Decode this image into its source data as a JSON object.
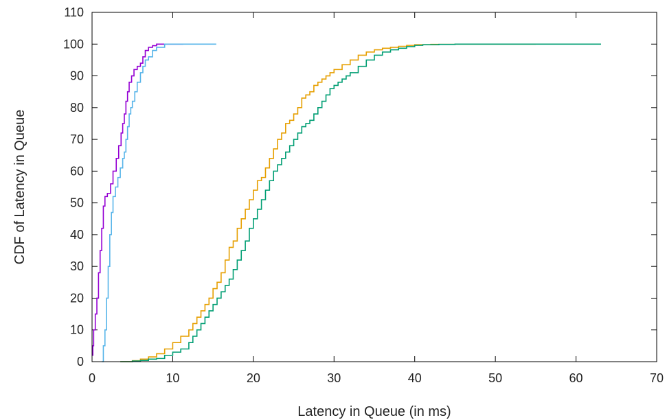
{
  "chart_data": {
    "type": "line",
    "title": "",
    "xlabel": "Latency in Queue (in ms)",
    "ylabel": "CDF of Latency in Queue",
    "xlim": [
      0,
      70
    ],
    "ylim": [
      0,
      110
    ],
    "x_ticks": [
      0,
      10,
      20,
      30,
      40,
      50,
      60,
      70
    ],
    "y_ticks": [
      0,
      10,
      20,
      30,
      40,
      50,
      60,
      70,
      80,
      90,
      100,
      110
    ],
    "grid": false,
    "legend": "none",
    "step": true,
    "series": [
      {
        "color": "#9400d3",
        "x": [
          0.0,
          0.1,
          0.2,
          0.4,
          0.6,
          0.8,
          1.0,
          1.2,
          1.4,
          1.6,
          1.9,
          2.3,
          2.6,
          3.0,
          3.3,
          3.6,
          3.8,
          4.0,
          4.2,
          4.4,
          4.6,
          4.9,
          5.2,
          5.6,
          6.0,
          6.3,
          6.6,
          7.0,
          7.5,
          8.0,
          9.0,
          10.0,
          11.3
        ],
        "y": [
          2,
          5,
          10,
          15,
          20,
          28,
          35,
          42,
          49,
          52,
          53,
          56,
          60,
          64,
          68,
          72,
          75,
          78,
          82,
          85,
          88,
          90,
          92,
          93,
          94,
          96,
          98,
          99,
          99.5,
          100,
          100,
          100,
          100
        ]
      },
      {
        "color": "#56b4e9",
        "x": [
          1.2,
          1.4,
          1.6,
          1.8,
          2.0,
          2.2,
          2.4,
          2.6,
          2.9,
          3.2,
          3.5,
          3.8,
          4.0,
          4.2,
          4.4,
          4.6,
          4.8,
          5.0,
          5.3,
          5.6,
          6.0,
          6.3,
          6.6,
          7.0,
          7.5,
          8.0,
          9.0,
          10.0,
          12.0,
          15.4
        ],
        "y": [
          0,
          5,
          10,
          20,
          30,
          40,
          47,
          52,
          55,
          58,
          61,
          64,
          66,
          70,
          74,
          78,
          80,
          82,
          85,
          88,
          91,
          93,
          95,
          96,
          98,
          99,
          100,
          100,
          100,
          100
        ]
      },
      {
        "color": "#e69f00",
        "x": [
          3.5,
          5,
          6,
          7,
          8,
          9,
          10,
          11,
          12,
          12.5,
          13,
          13.5,
          14,
          14.5,
          15,
          15.5,
          16,
          16.5,
          17,
          17.5,
          18,
          18.5,
          19,
          19.5,
          20,
          20.5,
          21,
          21.5,
          22,
          22.5,
          23,
          23.5,
          24,
          24.5,
          25,
          25.5,
          26,
          26.5,
          27,
          27.5,
          28,
          28.5,
          29,
          29.5,
          30,
          31,
          32,
          33,
          34,
          35,
          36,
          37,
          38,
          39,
          40,
          42,
          45,
          50,
          55
        ],
        "y": [
          0,
          0.3,
          0.8,
          1.5,
          2.5,
          4,
          6,
          8,
          10,
          12,
          14,
          16,
          18,
          20,
          23,
          25,
          28,
          32,
          36,
          38,
          42,
          45,
          48,
          51,
          54,
          57,
          58,
          61,
          64,
          67,
          70,
          72,
          75,
          76,
          78,
          80,
          83,
          84,
          85,
          87,
          88,
          89,
          90,
          91,
          92,
          93.5,
          95,
          96.5,
          97.5,
          98.2,
          98.7,
          99,
          99.3,
          99.6,
          99.8,
          99.9,
          100,
          100,
          100
        ]
      },
      {
        "color": "#009e73",
        "x": [
          3.5,
          5,
          6,
          7,
          8,
          9,
          10,
          11,
          12,
          12.5,
          13,
          13.5,
          14,
          14.5,
          15,
          15.5,
          16,
          16.5,
          17,
          17.5,
          18,
          18.5,
          19,
          19.5,
          20,
          20.5,
          21,
          21.5,
          22,
          22.5,
          23,
          23.5,
          24,
          24.5,
          25,
          25.5,
          26,
          26.5,
          27,
          27.5,
          28,
          28.5,
          29,
          29.5,
          30,
          30.5,
          31,
          31.5,
          32,
          33,
          34,
          35,
          36,
          37,
          38,
          39,
          40,
          41,
          43,
          45,
          50,
          55,
          60,
          63.1
        ],
        "y": [
          0,
          0.2,
          0.4,
          0.8,
          1,
          2,
          3,
          4,
          6,
          8,
          10,
          12,
          14,
          16,
          18,
          20,
          22,
          24,
          26,
          29,
          32,
          35,
          38,
          42,
          45,
          48,
          51,
          54,
          57,
          60,
          62,
          64,
          66,
          68,
          70,
          72,
          74,
          75,
          76,
          78,
          80,
          82,
          84,
          86,
          87,
          88,
          89,
          90,
          91,
          93,
          95,
          96.5,
          97.5,
          98.2,
          98.7,
          99.2,
          99.6,
          99.8,
          99.9,
          100,
          100,
          100,
          100,
          100
        ]
      }
    ]
  }
}
